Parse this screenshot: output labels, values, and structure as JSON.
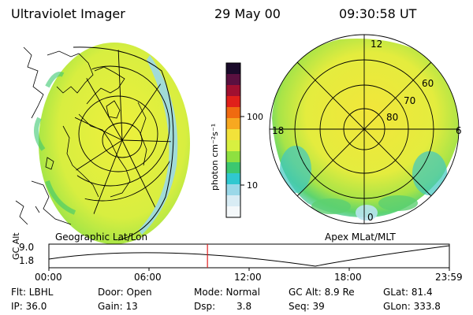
{
  "header": {
    "title": "Ultraviolet Imager",
    "date": "29 May 00",
    "time": "09:30:58 UT"
  },
  "left_panel": {
    "caption": "Geographic Lat/Lon"
  },
  "right_panel": {
    "caption": "Apex MLat/MLT",
    "mlt_labels": {
      "top": "12",
      "left": "18",
      "right": "6",
      "bottom": "0"
    },
    "lat_labels": [
      "60",
      "70",
      "80"
    ]
  },
  "colorbar": {
    "unit_label": "photon cm⁻²s⁻¹",
    "ticks": [
      "100",
      "10"
    ],
    "colors": [
      "#1a0a2a",
      "#5a1040",
      "#a01030",
      "#e0201a",
      "#f06a10",
      "#f7a820",
      "#f2e23a",
      "#d8f040",
      "#8ee040",
      "#3cc870",
      "#30c8d0",
      "#9ad8e8",
      "#d8ecf4",
      "#f4f8fa"
    ]
  },
  "timeline": {
    "axis_label": "GC Alt",
    "y_ticks": [
      "9.0",
      "1.8"
    ],
    "x_ticks": [
      "00:00",
      "06:00",
      "12:00",
      "18:00",
      "23:59"
    ],
    "current_time_fraction": 0.396,
    "marker_color": "#e02020"
  },
  "info": {
    "row1": {
      "flt": "Flt: LBHL",
      "door": "Door: Open",
      "mode": "Mode: Normal",
      "gcalt": "GC Alt: 8.9 Re",
      "glat": "GLat: 81.4"
    },
    "row2": {
      "ip": "IP: 36.0",
      "gain": "Gain: 13",
      "dsp_label": "Dsp:",
      "dsp_value": "3.8",
      "seq": "Seq: 39",
      "glon": "GLon: 333.8"
    }
  }
}
